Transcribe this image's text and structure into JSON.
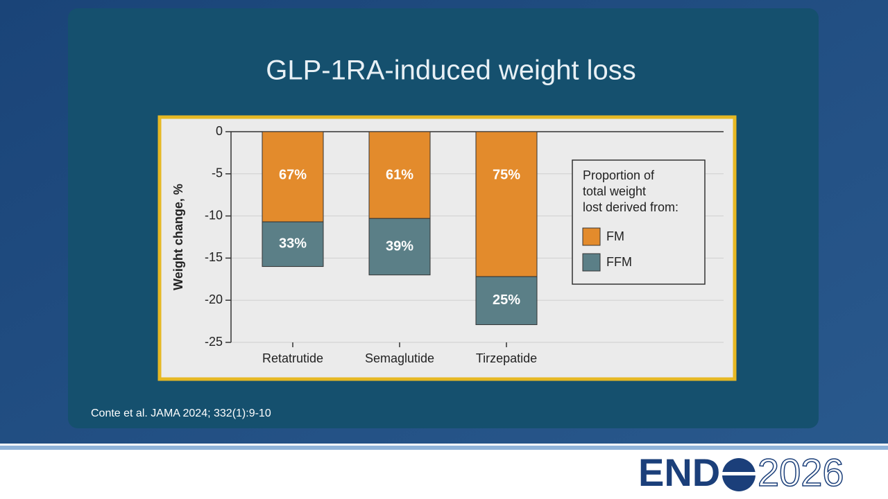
{
  "slide_title": "GLP-1RA-induced weight loss",
  "citation": "Conte et al. JAMA 2024; 332(1):9-10",
  "logo": {
    "prefix": "END",
    "suffix": "2026"
  },
  "chart_data": {
    "type": "stacked-bar",
    "categories": [
      "Retatrutide",
      "Semaglutide",
      "Tirzepatide"
    ],
    "y_label": "Weight change, %",
    "series": [
      {
        "name": "FM",
        "color": "#e38b2c",
        "values": [
          -10.7,
          -10.3,
          -17.2
        ],
        "percent_labels": [
          "67%",
          "61%",
          "75%"
        ]
      },
      {
        "name": "FFM",
        "color": "#5b7f87",
        "values": [
          -5.3,
          -6.7,
          -5.7
        ],
        "percent_labels": [
          "33%",
          "39%",
          "25%"
        ]
      }
    ],
    "legend_title": [
      "Proportion of",
      "total weight",
      "lost derived from:"
    ],
    "ylim": [
      -25,
      0
    ],
    "yticks": [
      0,
      -5,
      -10,
      -15,
      -20,
      -25
    ],
    "grid": true
  }
}
